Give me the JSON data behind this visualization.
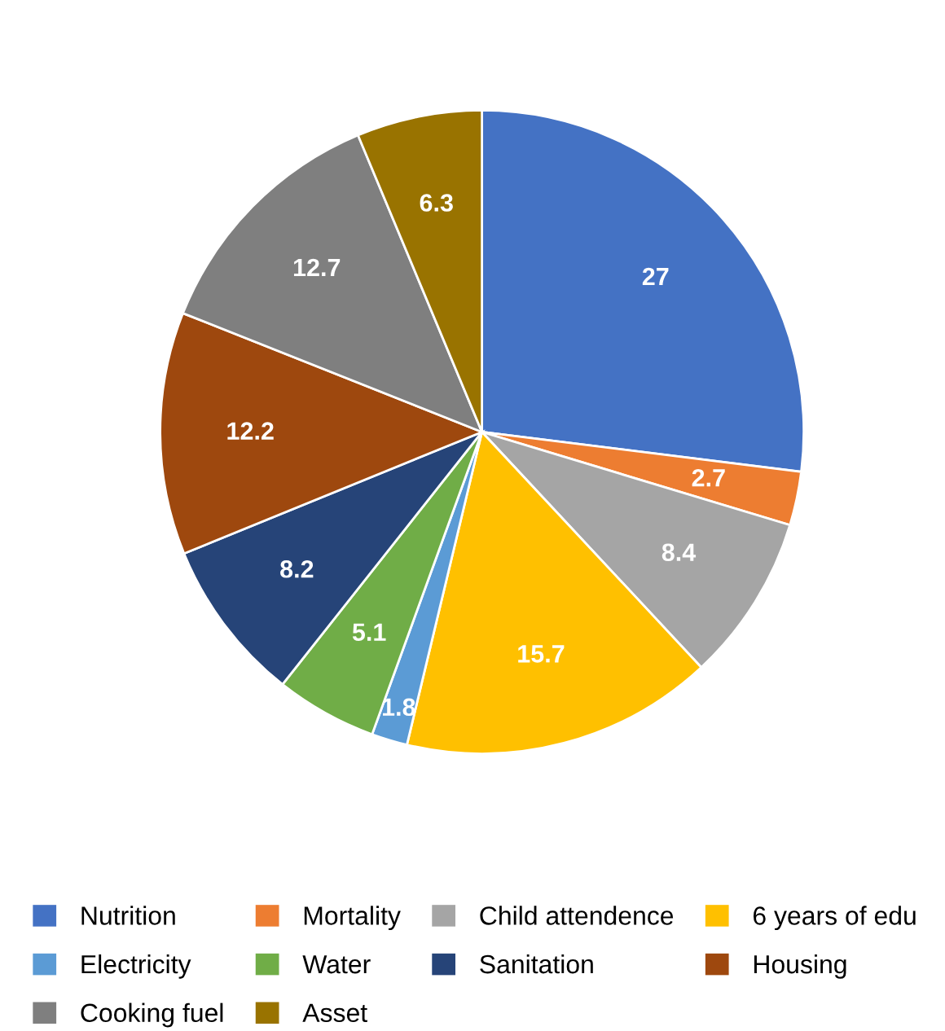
{
  "chart_data": {
    "type": "pie",
    "categories": [
      "Nutrition",
      "Mortality",
      "Child attendence",
      "6 years of edu",
      "Electricity",
      "Water",
      "Sanitation",
      "Housing",
      "Cooking fuel",
      "Asset"
    ],
    "values": [
      27,
      2.7,
      8.4,
      15.7,
      1.8,
      5.1,
      8.2,
      12.2,
      12.7,
      6.3
    ],
    "colors": [
      "#4472c4",
      "#ed7d31",
      "#a5a5a5",
      "#ffc000",
      "#5b9bd5",
      "#70ad47",
      "#264478",
      "#9e480e",
      "#7f7f7f",
      "#997300"
    ],
    "data_labels": true,
    "legend": "bottom"
  }
}
